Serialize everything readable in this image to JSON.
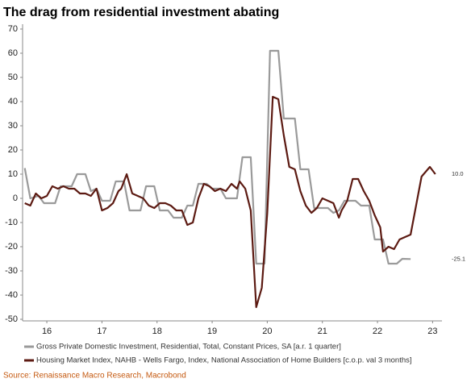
{
  "chart_data": {
    "type": "line",
    "title": "The drag from residential investment abating",
    "source": "Source: Renaissance Macro Research, Macrobond",
    "xlim": [
      15.56,
      23.17
    ],
    "xticks": [
      16,
      17,
      18,
      19,
      20,
      21,
      22,
      23
    ],
    "ylim": [
      -50,
      70
    ],
    "yticks": [
      -50,
      -40,
      -30,
      -20,
      -10,
      0,
      10,
      20,
      30,
      40,
      50,
      60,
      70
    ],
    "series": [
      {
        "name": "Gross Private Domestic Investment, Residential, Total, Constant Prices, SA [a.r. 1 quarter]",
        "color": "#9a9a9a",
        "x": [
          15.6,
          15.7,
          15.85,
          15.95,
          16.15,
          16.25,
          16.45,
          16.55,
          16.7,
          16.8,
          16.9,
          17.0,
          17.15,
          17.25,
          17.4,
          17.5,
          17.7,
          17.8,
          17.95,
          18.05,
          18.2,
          18.3,
          18.45,
          18.55,
          18.65,
          18.75,
          18.9,
          19.0,
          19.15,
          19.25,
          19.45,
          19.55,
          19.7,
          19.8,
          19.95,
          20.05,
          20.2,
          20.3,
          20.5,
          20.6,
          20.75,
          20.85,
          21.1,
          21.2,
          21.3,
          21.4,
          21.6,
          21.7,
          21.85,
          21.95,
          22.1,
          22.2,
          22.35,
          22.45,
          22.6
        ],
        "values": [
          12.5,
          0,
          1,
          -2,
          -2,
          5,
          5,
          10,
          10,
          3,
          4,
          -1,
          -1,
          7,
          7,
          -5,
          -5,
          5,
          5,
          -5,
          -5,
          -8,
          -8,
          -3,
          -3,
          6,
          6,
          4,
          4,
          0,
          0,
          17,
          17,
          -27,
          -27,
          61,
          61,
          33,
          33,
          12,
          12,
          -4,
          -4,
          -6,
          -5,
          -1,
          -1,
          -3,
          -3,
          -17,
          -17,
          -27,
          -27,
          -25,
          -25.1
        ],
        "end_label": {
          "value": -25.1,
          "label": "-25.1"
        }
      },
      {
        "name": "Housing Market Index, NAHB - Wells Fargo, Index, National Association of Home Builders [c.o.p. val 3 months]",
        "color": "#5c1a12",
        "x": [
          15.6,
          15.7,
          15.8,
          15.9,
          16.0,
          16.1,
          16.2,
          16.3,
          16.4,
          16.5,
          16.6,
          16.7,
          16.8,
          16.9,
          17.0,
          17.1,
          17.2,
          17.3,
          17.35,
          17.45,
          17.55,
          17.65,
          17.75,
          17.85,
          17.95,
          18.05,
          18.15,
          18.25,
          18.35,
          18.45,
          18.55,
          18.65,
          18.75,
          18.85,
          18.95,
          19.05,
          19.15,
          19.25,
          19.35,
          19.45,
          19.5,
          19.6,
          19.7,
          19.8,
          19.9,
          20.0,
          20.1,
          20.2,
          20.3,
          20.4,
          20.5,
          20.6,
          20.7,
          20.8,
          20.9,
          21.0,
          21.1,
          21.2,
          21.3,
          21.35,
          21.45,
          21.55,
          21.65,
          21.75,
          21.85,
          21.95,
          22.05,
          22.1,
          22.2,
          22.3,
          22.4,
          22.5,
          22.6,
          22.7,
          22.8,
          22.95,
          23.05
        ],
        "values": [
          -2,
          -3,
          2,
          0,
          1,
          5,
          4,
          5,
          4,
          4,
          2,
          2,
          1,
          4,
          -5,
          -4,
          -2,
          3,
          4,
          10,
          2,
          1,
          0,
          -3,
          -4,
          -2,
          -2,
          -3,
          -5,
          -5,
          -11,
          -10,
          0,
          6,
          5,
          3,
          4,
          3,
          6,
          4,
          7,
          4,
          -5,
          -45,
          -37,
          -6,
          42,
          41,
          26,
          13,
          12,
          3,
          -3,
          -6,
          -4,
          0,
          -1,
          -2,
          -8,
          -5,
          -1,
          8,
          8,
          3,
          -1,
          -7,
          -12,
          -22,
          -20,
          -21,
          -17,
          -16,
          -15,
          -3,
          9,
          13,
          10
        ],
        "end_label": {
          "value": 10,
          "label": "10.0"
        }
      }
    ]
  }
}
